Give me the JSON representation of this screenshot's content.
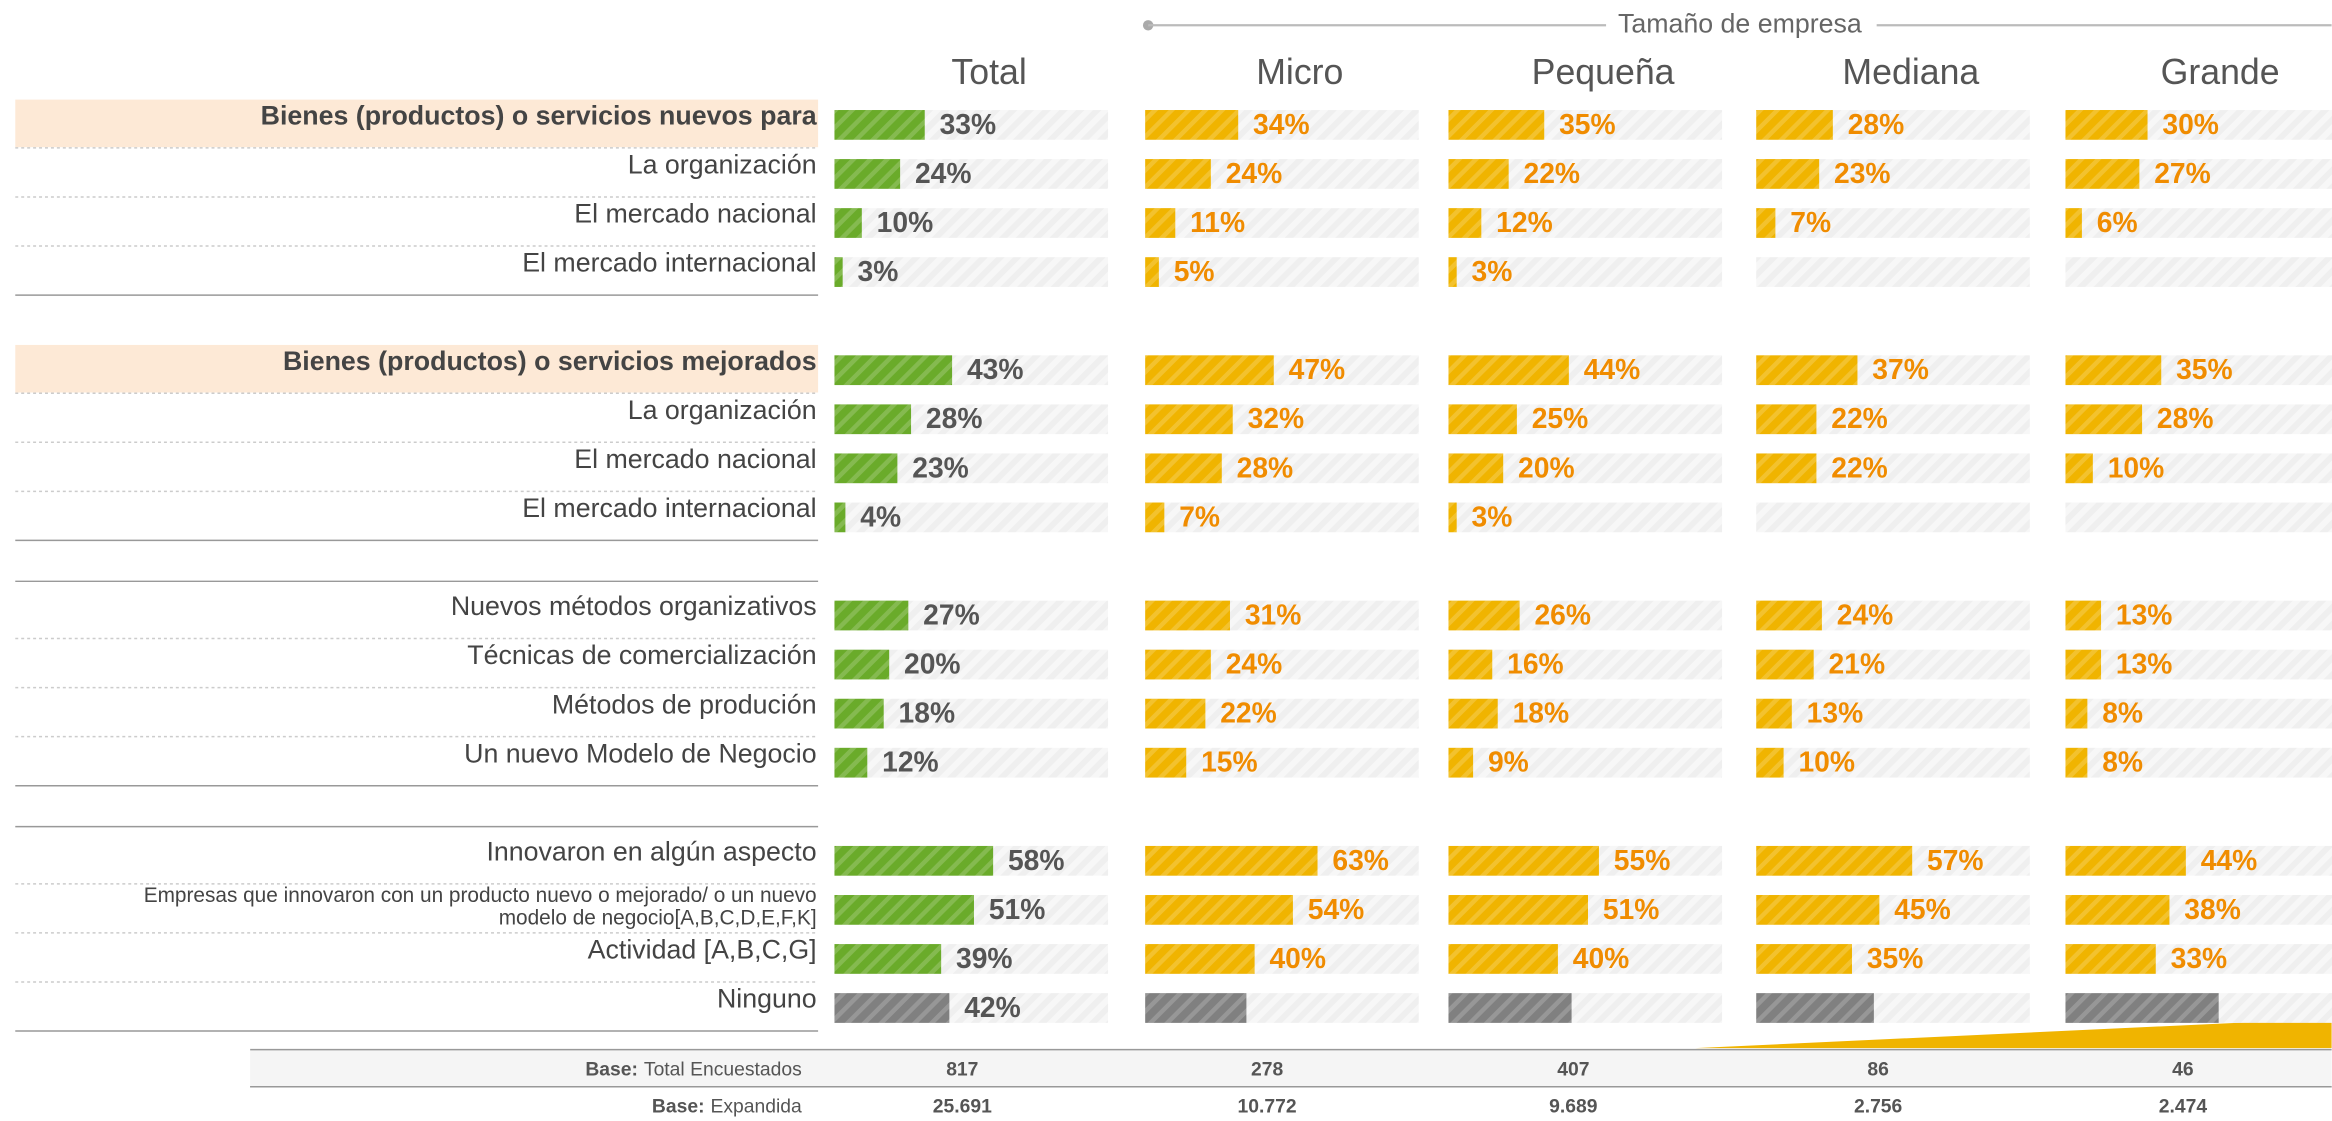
{
  "group_header": "Tamaño de empresa",
  "columns": [
    "Total",
    "Micro",
    "Pequeña",
    "Mediana",
    "Grande"
  ],
  "colors": [
    "#6aab2a",
    "#f0b400",
    "#f0b400",
    "#f0b400",
    "#f0b400"
  ],
  "sections": [
    {
      "rows": [
        {
          "label": "Bienes (productos) o servicios nuevos para",
          "highlight": true,
          "values": [
            33,
            34,
            35,
            28,
            30
          ],
          "value_labels": [
            "33%",
            "34%",
            "35%",
            "28%",
            "30%"
          ]
        },
        {
          "label": "La organización",
          "values": [
            24,
            24,
            22,
            23,
            27
          ],
          "value_labels": [
            "24%",
            "24%",
            "22%",
            "23%",
            "27%"
          ]
        },
        {
          "label": "El mercado nacional",
          "values": [
            10,
            11,
            12,
            7,
            6
          ],
          "value_labels": [
            "10%",
            "11%",
            "12%",
            "7%",
            "6%"
          ]
        },
        {
          "label": "El mercado internacional",
          "values": [
            3,
            5,
            3,
            null,
            null
          ],
          "value_labels": [
            "3%",
            "5%",
            "3%",
            null,
            null
          ]
        }
      ]
    },
    {
      "rows": [
        {
          "label": "Bienes (productos) o servicios mejorados",
          "highlight": true,
          "values": [
            43,
            47,
            44,
            37,
            35
          ],
          "value_labels": [
            "43%",
            "47%",
            "44%",
            "37%",
            "35%"
          ]
        },
        {
          "label": "La organización",
          "values": [
            28,
            32,
            25,
            22,
            28
          ],
          "value_labels": [
            "28%",
            "32%",
            "25%",
            "22%",
            "28%"
          ]
        },
        {
          "label": "El mercado nacional",
          "values": [
            23,
            28,
            20,
            22,
            10
          ],
          "value_labels": [
            "23%",
            "28%",
            "20%",
            "22%",
            "10%"
          ]
        },
        {
          "label": "El mercado internacional",
          "values": [
            4,
            7,
            3,
            null,
            null
          ],
          "value_labels": [
            "4%",
            "7%",
            "3%",
            null,
            null
          ]
        }
      ]
    },
    {
      "rows": [
        {
          "label": "Nuevos métodos organizativos",
          "values": [
            27,
            31,
            26,
            24,
            13
          ],
          "value_labels": [
            "27%",
            "31%",
            "26%",
            "24%",
            "13%"
          ]
        },
        {
          "label": "Técnicas de comercialización",
          "values": [
            20,
            24,
            16,
            21,
            13
          ],
          "value_labels": [
            "20%",
            "24%",
            "16%",
            "21%",
            "13%"
          ]
        },
        {
          "label": "Métodos de produción",
          "values": [
            18,
            22,
            18,
            13,
            8
          ],
          "value_labels": [
            "18%",
            "22%",
            "18%",
            "13%",
            "8%"
          ]
        },
        {
          "label": "Un nuevo Modelo de Negocio",
          "values": [
            12,
            15,
            9,
            10,
            8
          ],
          "value_labels": [
            "12%",
            "15%",
            "9%",
            "10%",
            "8%"
          ]
        }
      ]
    },
    {
      "rows": [
        {
          "label": "Innovaron en algún aspecto",
          "values": [
            58,
            63,
            55,
            57,
            44
          ],
          "value_labels": [
            "58%",
            "63%",
            "55%",
            "57%",
            "44%"
          ]
        },
        {
          "label": [
            "Empresas que innovaron con un producto nuevo o mejorado/ o un nuevo",
            "modelo de negocio[A,B,C,D,E,F,K]"
          ],
          "values": [
            51,
            54,
            51,
            45,
            38
          ],
          "value_labels": [
            "51%",
            "54%",
            "51%",
            "45%",
            "38%"
          ]
        },
        {
          "label": "Actividad [A,B,C,G]",
          "values": [
            39,
            40,
            40,
            35,
            33
          ],
          "value_labels": [
            "39%",
            "40%",
            "40%",
            "35%",
            "33%"
          ]
        },
        {
          "label": "Ninguno",
          "color": "#808080",
          "values": [
            42,
            37,
            45,
            43,
            56
          ],
          "value_labels": [
            "42%",
            null,
            null,
            null,
            null
          ]
        }
      ]
    }
  ],
  "base": [
    {
      "prefix": "Base:",
      "label": "Total Encuestados",
      "values": [
        "817",
        "278",
        "407",
        "86",
        "46"
      ]
    },
    {
      "prefix": "Base:",
      "label": "Expandida",
      "values": [
        "25.691",
        "10.772",
        "9.689",
        "2.756",
        "2.474"
      ]
    }
  ]
}
